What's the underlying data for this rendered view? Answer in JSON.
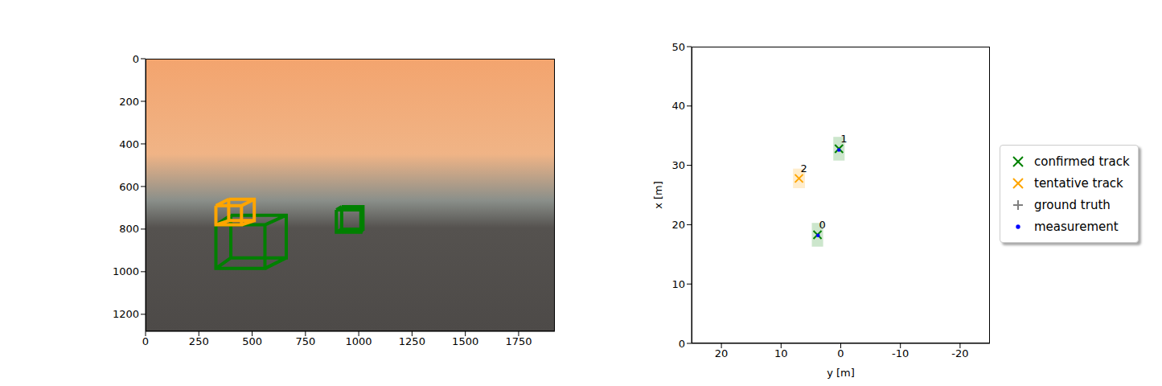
{
  "chart_data": [
    {
      "type": "line",
      "xlim": [
        0,
        1920
      ],
      "ylim": [
        1280,
        0
      ],
      "xticks": [
        0,
        250,
        500,
        750,
        1000,
        1250,
        1500,
        1750
      ],
      "yticks": [
        0,
        200,
        400,
        600,
        800,
        1000,
        1200
      ],
      "series": [
        {
          "color": "green",
          "x": [
            330,
            560,
            560,
            330,
            330,
            330,
            400,
            660,
            660,
            400,
            400,
            400,
            330,
            400,
            400,
            560,
            660,
            660,
            560,
            660,
            660,
            330,
            400
          ],
          "values": [
            780,
            780,
            985,
            985,
            780,
            null,
            735,
            735,
            935,
            935,
            735,
            null,
            780,
            735,
            null,
            780,
            735,
            null,
            985,
            935,
            null,
            985,
            935
          ]
        },
        {
          "color": "orange",
          "x": [
            330,
            450,
            450,
            330,
            330,
            330,
            390,
            510,
            510,
            390,
            390,
            390,
            330,
            390,
            390,
            450,
            510,
            510,
            450,
            510,
            510,
            330,
            390
          ],
          "values": [
            690,
            690,
            780,
            780,
            690,
            null,
            660,
            660,
            760,
            760,
            660,
            null,
            690,
            660,
            null,
            690,
            660,
            null,
            780,
            760,
            null,
            780,
            760
          ]
        },
        {
          "color": "green",
          "x": [
            895,
            1010,
            1010,
            895,
            895,
            895,
            920,
            1020,
            1020,
            920,
            920,
            920,
            895,
            920,
            920,
            1010,
            1020,
            1020,
            1010,
            1020,
            1020,
            895,
            920
          ],
          "values": [
            710,
            710,
            815,
            815,
            710,
            null,
            695,
            695,
            800,
            800,
            695,
            null,
            710,
            695,
            null,
            710,
            695,
            null,
            815,
            800,
            null,
            815,
            800
          ]
        }
      ]
    },
    {
      "type": "scatter",
      "xlabel": "y [m]",
      "ylabel": "x [m]",
      "xlim": [
        25,
        -25
      ],
      "ylim": [
        0,
        50
      ],
      "xticks": [
        20,
        10,
        0,
        -10,
        -20
      ],
      "yticks": [
        0,
        10,
        20,
        30,
        40,
        50
      ],
      "legend": "right",
      "series": [
        {
          "name": "confirmed track",
          "color": "green",
          "marker": "x",
          "x": [
            3.9,
            0.3
          ],
          "values": [
            18.3,
            32.8
          ],
          "labels": [
            "0",
            "1"
          ],
          "widths": [
            1.9,
            1.9
          ],
          "lengths": [
            4,
            4
          ]
        },
        {
          "name": "tentative track",
          "color": "orange",
          "marker": "x",
          "x": [
            7.0
          ],
          "values": [
            27.8
          ],
          "labels": [
            "2"
          ],
          "widths": [
            2
          ],
          "lengths": [
            3.3
          ]
        },
        {
          "name": "ground truth",
          "color": "gray",
          "marker": "plus",
          "x": [],
          "values": []
        },
        {
          "name": "measurement",
          "color": "blue",
          "marker": "dot",
          "x": [
            3.8,
            0.3
          ],
          "values": [
            18.2,
            32.6
          ]
        }
      ]
    }
  ]
}
